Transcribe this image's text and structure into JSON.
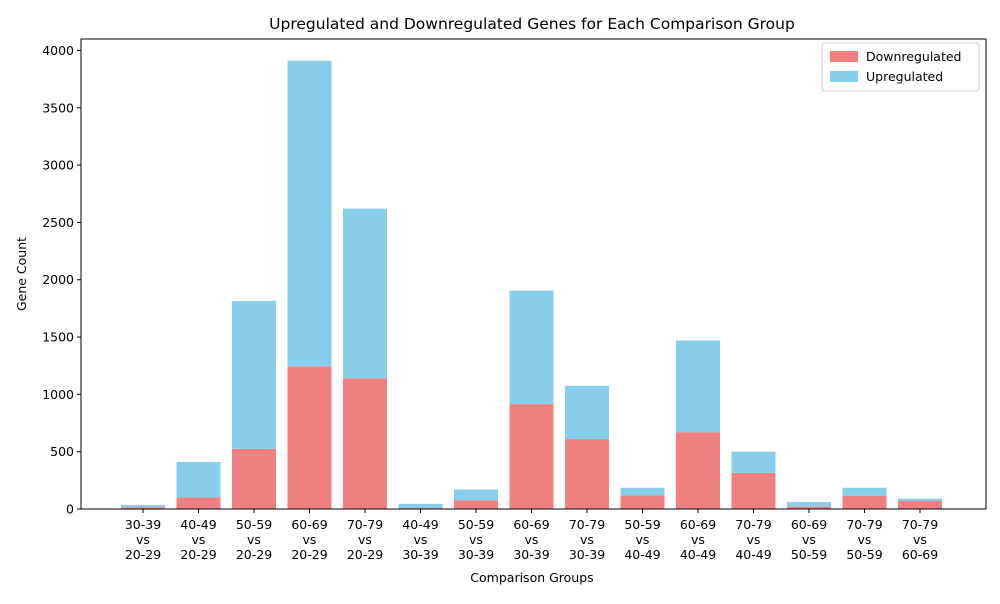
{
  "chart_data": {
    "type": "bar",
    "stacked": true,
    "title": "Upregulated and Downregulated Genes for Each Comparison Group",
    "xlabel": "Comparison Groups",
    "ylabel": "Gene Count",
    "ylim": [
      0,
      4100
    ],
    "yticks": [
      0,
      500,
      1000,
      1500,
      2000,
      2500,
      3000,
      3500,
      4000
    ],
    "categories": [
      [
        "30-39",
        "vs",
        "20-29"
      ],
      [
        "40-49",
        "vs",
        "20-29"
      ],
      [
        "50-59",
        "vs",
        "20-29"
      ],
      [
        "60-69",
        "vs",
        "20-29"
      ],
      [
        "70-79",
        "vs",
        "20-29"
      ],
      [
        "40-49",
        "vs",
        "30-39"
      ],
      [
        "50-59",
        "vs",
        "30-39"
      ],
      [
        "60-69",
        "vs",
        "30-39"
      ],
      [
        "70-79",
        "vs",
        "30-39"
      ],
      [
        "50-59",
        "vs",
        "40-49"
      ],
      [
        "60-69",
        "vs",
        "40-49"
      ],
      [
        "70-79",
        "vs",
        "40-49"
      ],
      [
        "60-69",
        "vs",
        "50-59"
      ],
      [
        "70-79",
        "vs",
        "50-59"
      ],
      [
        "70-79",
        "vs",
        "60-69"
      ]
    ],
    "series": [
      {
        "name": "Downregulated",
        "color": "#f08080",
        "values": [
          15,
          100,
          525,
          1245,
          1140,
          8,
          75,
          915,
          610,
          120,
          670,
          315,
          20,
          115,
          70
        ]
      },
      {
        "name": "Upregulated",
        "color": "#87ceeb",
        "values": [
          20,
          310,
          1290,
          2665,
          1480,
          37,
          95,
          990,
          465,
          65,
          800,
          185,
          40,
          70,
          20
        ]
      }
    ],
    "legend_position": "top-right",
    "grid": false
  }
}
